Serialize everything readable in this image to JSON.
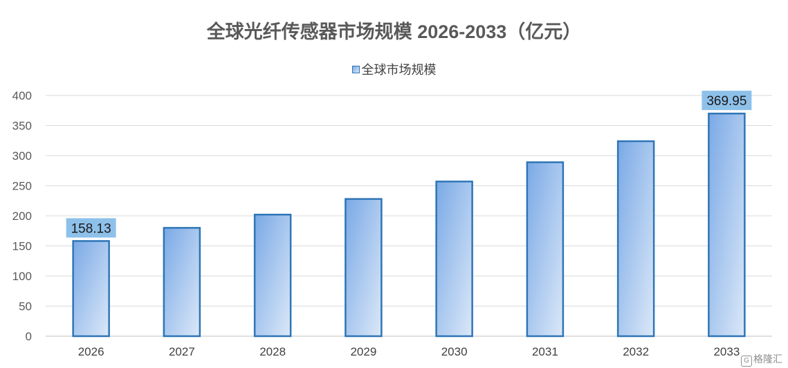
{
  "chart_data": {
    "type": "bar",
    "title": "全球光纤传感器市场规模 2026-2033（亿元）",
    "categories": [
      "2026",
      "2027",
      "2028",
      "2029",
      "2030",
      "2031",
      "2032",
      "2033"
    ],
    "series": [
      {
        "name": "全球市场规模",
        "values": [
          158.13,
          180,
          202,
          228,
          257,
          289,
          324,
          369.95
        ]
      }
    ],
    "data_labels": [
      {
        "category": "2026",
        "text": "158.13"
      },
      {
        "category": "2033",
        "text": "369.95"
      }
    ],
    "yticks": [
      "0",
      "50",
      "100",
      "150",
      "200",
      "250",
      "300",
      "350",
      "400"
    ],
    "ylim": [
      0,
      400
    ],
    "grid": true,
    "legend_position": "top",
    "colors": {
      "bar_border": "#2e75b6",
      "bar_fill_dark": "#7aa9e6",
      "bar_fill_light": "#dbe8f8",
      "label_bg": "#8ec1ea",
      "grid": "#d9d9d9"
    }
  },
  "watermark": {
    "text": "格隆汇",
    "icon": "logo-icon"
  }
}
